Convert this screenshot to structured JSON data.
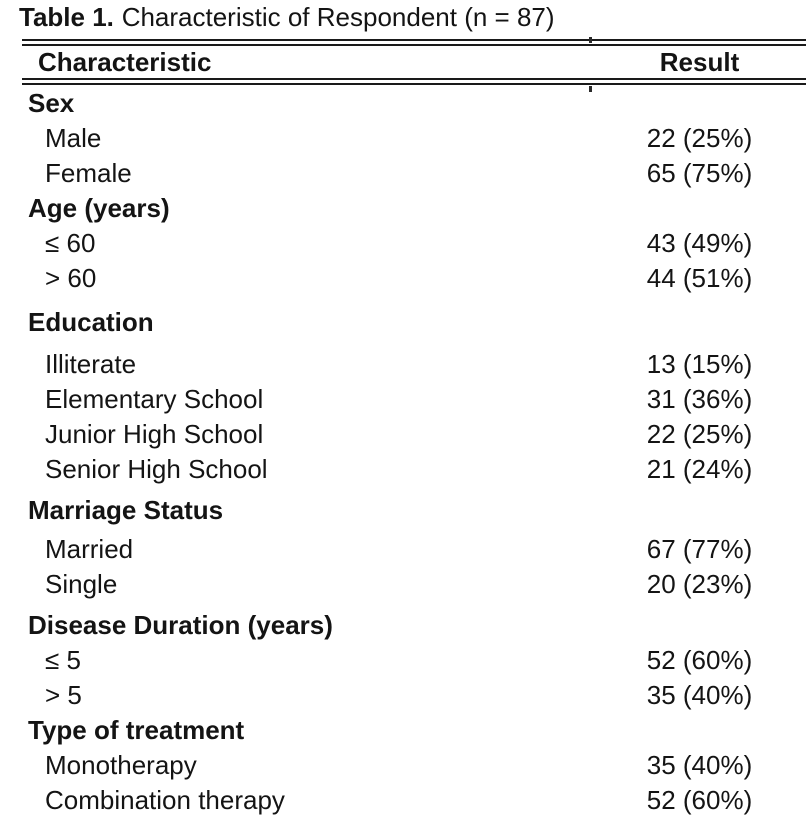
{
  "caption": {
    "label": "Table 1.",
    "text": "Characteristic of Respondent (n = 87)"
  },
  "table": {
    "header": {
      "characteristic": "Characteristic",
      "result": "Result"
    },
    "rows": [
      {
        "label": "Sex",
        "result": ""
      },
      {
        "label": "Male",
        "result": "22 (25%)"
      },
      {
        "label": "Female",
        "result": "65 (75%)"
      },
      {
        "label": "Age (years)",
        "result": ""
      },
      {
        "label": "≤ 60",
        "result": "43 (49%)"
      },
      {
        "label": "> 60",
        "result": "44 (51%)"
      },
      {
        "label": "Education",
        "result": ""
      },
      {
        "label": "Illiterate",
        "result": "13 (15%)"
      },
      {
        "label": "Elementary School",
        "result": "31 (36%)"
      },
      {
        "label": "Junior High School",
        "result": "22 (25%)"
      },
      {
        "label": "Senior High School",
        "result": "21 (24%)"
      },
      {
        "label": "Marriage Status",
        "result": ""
      },
      {
        "label": "Married",
        "result": "67 (77%)"
      },
      {
        "label": "Single",
        "result": "20 (23%)"
      },
      {
        "label": "Disease Duration (years)",
        "result": ""
      },
      {
        "label": "≤ 5",
        "result": "52 (60%)"
      },
      {
        "label": "> 5",
        "result": "35 (40%)"
      },
      {
        "label": "Type of treatment",
        "result": ""
      },
      {
        "label": "Monotherapy",
        "result": "35 (40%)"
      },
      {
        "label": "Combination therapy",
        "result": "52 (60%)"
      }
    ]
  },
  "chart_data": {
    "type": "table",
    "title": "Table 1. Characteristic of Respondent (n = 87)",
    "n": 87,
    "columns": [
      "Characteristic",
      "Result"
    ],
    "sections": [
      {
        "name": "Sex",
        "items": [
          {
            "label": "Male",
            "count": 22,
            "percent": 25
          },
          {
            "label": "Female",
            "count": 65,
            "percent": 75
          }
        ]
      },
      {
        "name": "Age (years)",
        "items": [
          {
            "label": "≤ 60",
            "count": 43,
            "percent": 49
          },
          {
            "label": "> 60",
            "count": 44,
            "percent": 51
          }
        ]
      },
      {
        "name": "Education",
        "items": [
          {
            "label": "Illiterate",
            "count": 13,
            "percent": 15
          },
          {
            "label": "Elementary School",
            "count": 31,
            "percent": 36
          },
          {
            "label": "Junior High School",
            "count": 22,
            "percent": 25
          },
          {
            "label": "Senior High School",
            "count": 21,
            "percent": 24
          }
        ]
      },
      {
        "name": "Marriage Status",
        "items": [
          {
            "label": "Married",
            "count": 67,
            "percent": 77
          },
          {
            "label": "Single",
            "count": 20,
            "percent": 23
          }
        ]
      },
      {
        "name": "Disease Duration (years)",
        "items": [
          {
            "label": "≤ 5",
            "count": 52,
            "percent": 60
          },
          {
            "label": "> 5",
            "count": 35,
            "percent": 40
          }
        ]
      },
      {
        "name": "Type of treatment",
        "items": [
          {
            "label": "Monotherapy",
            "count": 35,
            "percent": 40
          },
          {
            "label": "Combination therapy",
            "count": 52,
            "percent": 60
          }
        ]
      }
    ]
  }
}
